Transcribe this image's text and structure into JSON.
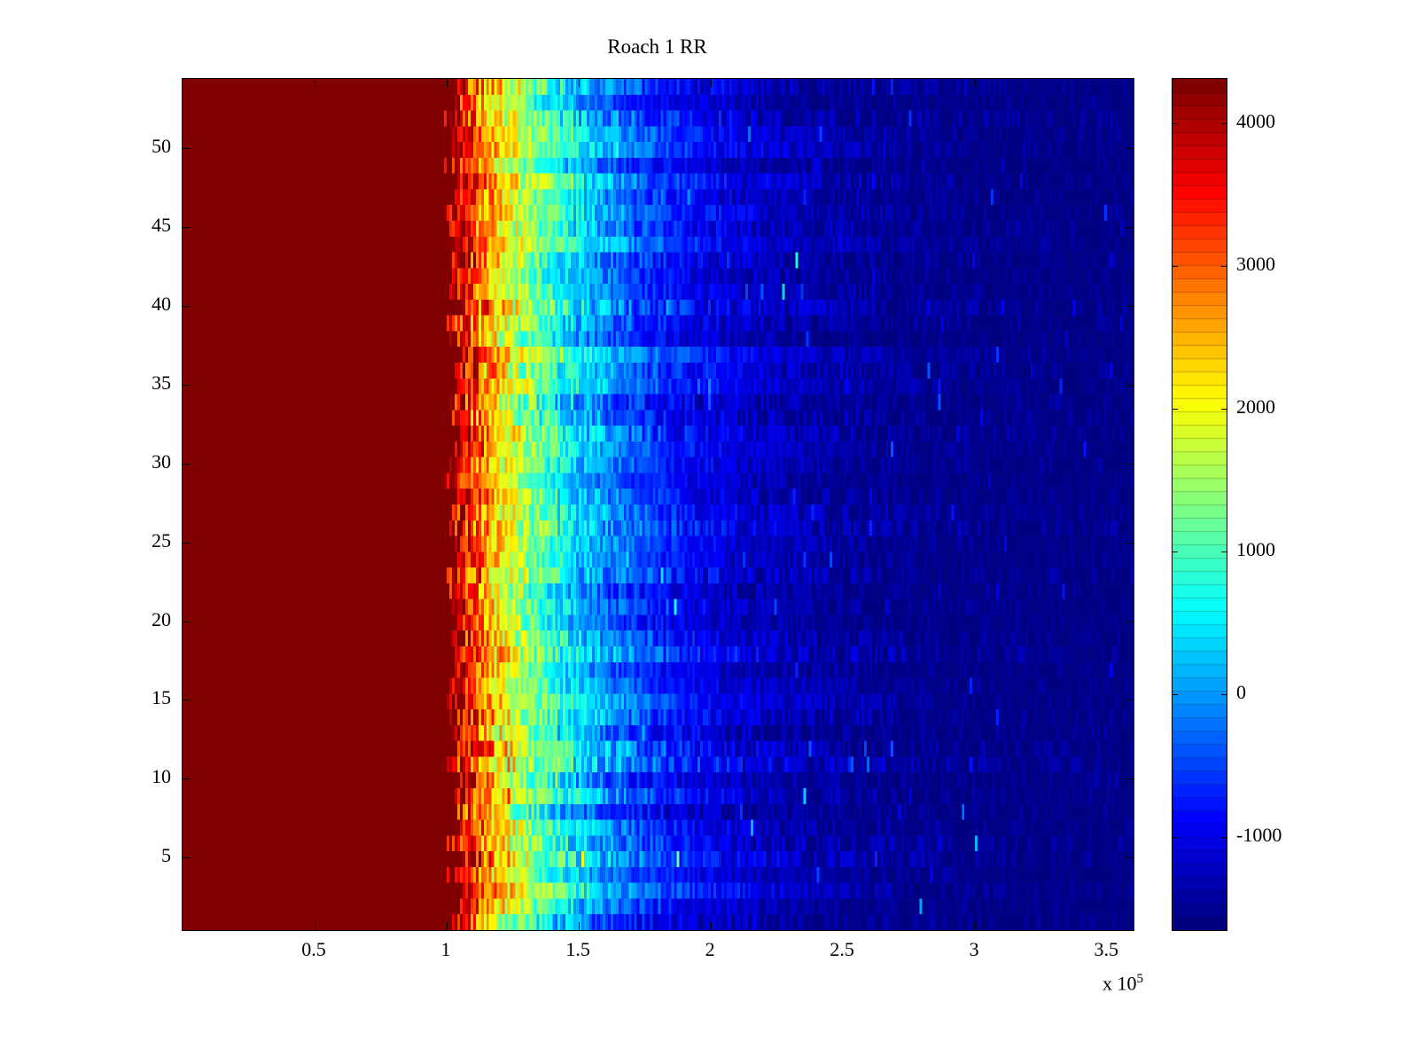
{
  "figure": {
    "title": "Roach 1 RR"
  },
  "chart_data": {
    "type": "heatmap",
    "title": "Roach 1 RR",
    "xlabel": "",
    "ylabel": "",
    "x_range": [
      0,
      360000
    ],
    "x_ticks": [
      50000,
      100000,
      150000,
      200000,
      250000,
      300000,
      350000
    ],
    "x_tick_labels": [
      "0.5",
      "1",
      "1.5",
      "2",
      "2.5",
      "3",
      "3.5"
    ],
    "x_multiplier_base": "x 10",
    "x_multiplier_exponent": "5",
    "y_range": [
      0.4,
      54.4
    ],
    "y_ticks": [
      5,
      10,
      15,
      20,
      25,
      30,
      35,
      40,
      45,
      50
    ],
    "y_tick_labels": [
      "5",
      "10",
      "15",
      "20",
      "25",
      "30",
      "35",
      "40",
      "45",
      "50"
    ],
    "rows": 54,
    "cols": 360,
    "colormap": "jet",
    "color_levels": 64,
    "clim": [
      -1650,
      4310
    ],
    "colorbar_ticks": [
      4000,
      3000,
      2000,
      1000,
      0,
      -1000
    ],
    "colorbar_tick_labels": [
      "4000",
      "3000",
      "2000",
      "1000",
      "0",
      "-1000"
    ],
    "profile": {
      "plateau_end_x": 102000,
      "plateau_value": 4600,
      "decay_start_value": 4200,
      "floor_value": -1650,
      "decay_tau": 45000,
      "row_jitter_x": 3000,
      "noise_amplitude": 250,
      "seed": 42
    }
  }
}
